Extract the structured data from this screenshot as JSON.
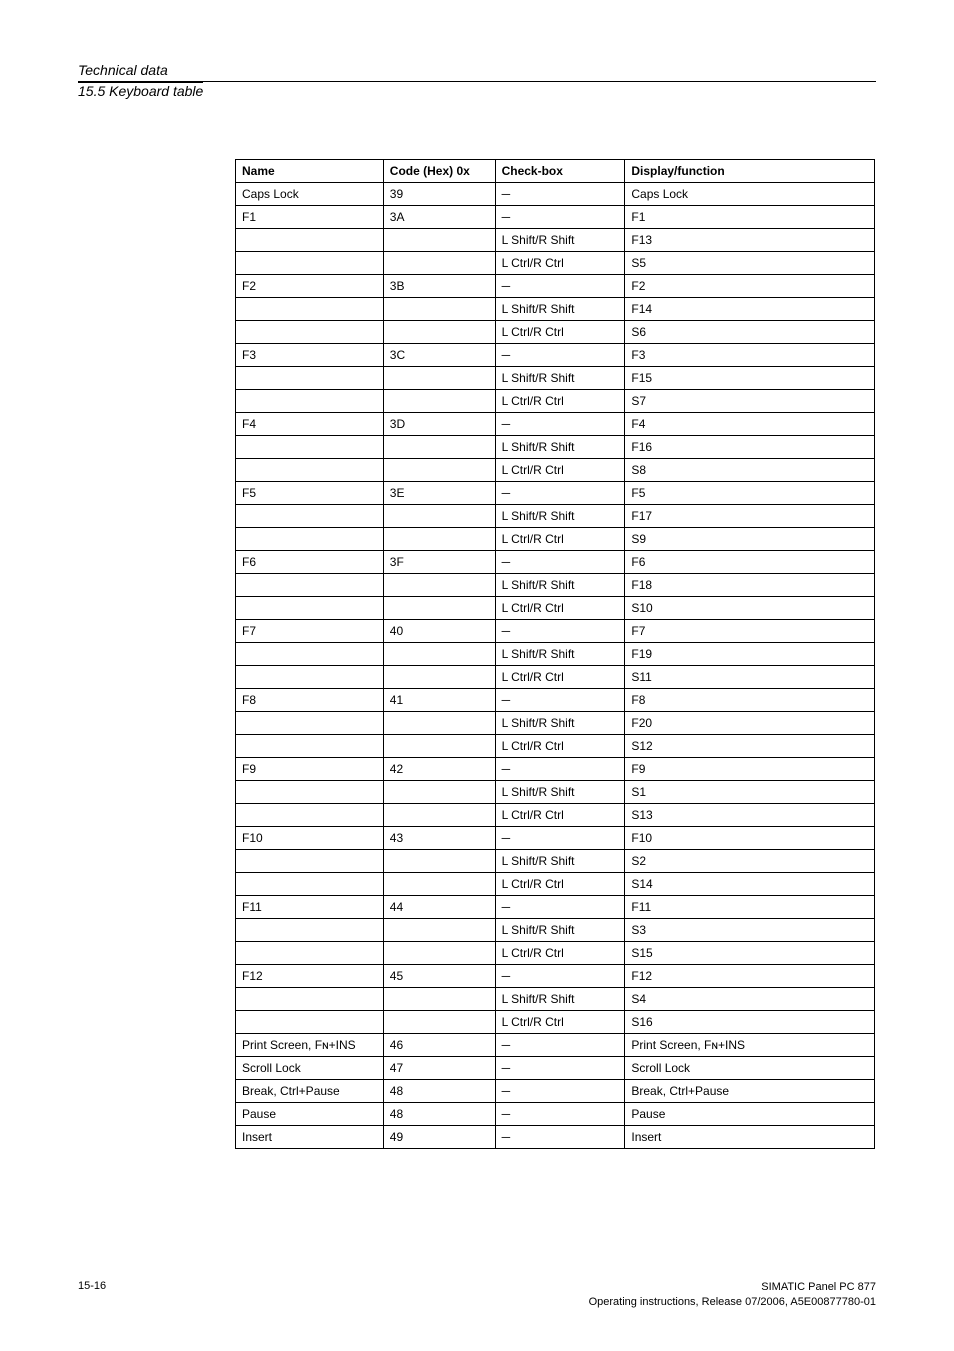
{
  "header": {
    "title": "Technical data",
    "subtitle": "15.5 Keyboard table"
  },
  "table": {
    "columns": [
      "Name",
      "Code (Hex) 0x",
      "Check-box",
      "Display/function"
    ],
    "rows": [
      [
        "Caps Lock",
        "39",
        "─",
        "Caps Lock"
      ],
      [
        "F1",
        "3A",
        "─",
        "F1"
      ],
      [
        "",
        "",
        "L Shift/R Shift",
        "F13"
      ],
      [
        "",
        "",
        "L Ctrl/R Ctrl",
        "S5"
      ],
      [
        "F2",
        "3B",
        "─",
        "F2"
      ],
      [
        "",
        "",
        "L Shift/R Shift",
        "F14"
      ],
      [
        "",
        "",
        "L Ctrl/R Ctrl",
        "S6"
      ],
      [
        "F3",
        "3C",
        "─",
        "F3"
      ],
      [
        "",
        "",
        "L Shift/R Shift",
        "F15"
      ],
      [
        "",
        "",
        "L Ctrl/R Ctrl",
        "S7"
      ],
      [
        "F4",
        "3D",
        "─",
        "F4"
      ],
      [
        "",
        "",
        "L Shift/R Shift",
        "F16"
      ],
      [
        "",
        "",
        "L Ctrl/R Ctrl",
        "S8"
      ],
      [
        "F5",
        "3E",
        "─",
        "F5"
      ],
      [
        "",
        "",
        "L Shift/R Shift",
        "F17"
      ],
      [
        "",
        "",
        "L Ctrl/R Ctrl",
        "S9"
      ],
      [
        "F6",
        "3F",
        "─",
        "F6"
      ],
      [
        "",
        "",
        "L Shift/R Shift",
        "F18"
      ],
      [
        "",
        "",
        "L Ctrl/R Ctrl",
        "S10"
      ],
      [
        "F7",
        "40",
        "─",
        "F7"
      ],
      [
        "",
        "",
        "L Shift/R Shift",
        "F19"
      ],
      [
        "",
        "",
        "L Ctrl/R Ctrl",
        "S11"
      ],
      [
        "F8",
        "41",
        "─",
        "F8"
      ],
      [
        "",
        "",
        "L Shift/R Shift",
        "F20"
      ],
      [
        "",
        "",
        "L Ctrl/R Ctrl",
        "S12"
      ],
      [
        "F9",
        "42",
        "─",
        "F9"
      ],
      [
        "",
        "",
        "L Shift/R Shift",
        "S1"
      ],
      [
        "",
        "",
        "L Ctrl/R Ctrl",
        "S13"
      ],
      [
        "F10",
        "43",
        "─",
        "F10"
      ],
      [
        "",
        "",
        "L Shift/R Shift",
        "S2"
      ],
      [
        "",
        "",
        "L Ctrl/R Ctrl",
        "S14"
      ],
      [
        "F11",
        "44",
        "─",
        "F11"
      ],
      [
        "",
        "",
        "L Shift/R Shift",
        "S3"
      ],
      [
        "",
        "",
        "L Ctrl/R Ctrl",
        "S15"
      ],
      [
        "F12",
        "45",
        "─",
        "F12"
      ],
      [
        "",
        "",
        "L Shift/R Shift",
        "S4"
      ],
      [
        "",
        "",
        "L Ctrl/R Ctrl",
        "S16"
      ],
      [
        "Print Screen, Fɴ+INS",
        "46",
        "─",
        "Print Screen, Fɴ+INS"
      ],
      [
        "Scroll Lock",
        "47",
        "─",
        "Scroll Lock"
      ],
      [
        "Break, Ctrl+Pause",
        "48",
        "─",
        "Break, Ctrl+Pause"
      ],
      [
        "Pause",
        "48",
        "─",
        "Pause"
      ],
      [
        "Insert",
        "49",
        "─",
        "Insert"
      ]
    ]
  },
  "footer": {
    "page": "15-16",
    "line1": "SIMATIC Panel PC 877",
    "line2": "Operating instructions, Release 07/2006, A5E00877780-01"
  }
}
